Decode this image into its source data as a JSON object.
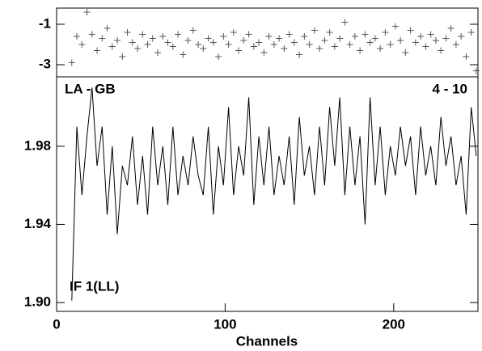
{
  "chart_data": [
    {
      "type": "scatter",
      "color": "#555555",
      "x": [
        9,
        12,
        15,
        18,
        21,
        24,
        27,
        30,
        33,
        36,
        39,
        42,
        45,
        48,
        51,
        54,
        57,
        60,
        63,
        66,
        69,
        72,
        75,
        78,
        81,
        84,
        87,
        90,
        93,
        96,
        99,
        102,
        105,
        108,
        111,
        114,
        117,
        120,
        123,
        126,
        129,
        132,
        135,
        138,
        141,
        144,
        147,
        150,
        153,
        156,
        159,
        162,
        165,
        168,
        171,
        174,
        177,
        180,
        183,
        186,
        189,
        192,
        195,
        198,
        201,
        204,
        207,
        210,
        213,
        216,
        219,
        222,
        225,
        228,
        231,
        234,
        237,
        240,
        243,
        246,
        249
      ],
      "y": [
        -2.9,
        -1.6,
        -2.0,
        -0.4,
        -1.5,
        -2.3,
        -1.7,
        -1.2,
        -2.1,
        -1.8,
        -2.6,
        -1.4,
        -1.9,
        -2.2,
        -1.5,
        -2.0,
        -1.7,
        -2.4,
        -1.6,
        -1.9,
        -2.1,
        -1.5,
        -2.5,
        -1.8,
        -1.3,
        -2.0,
        -2.2,
        -1.7,
        -1.9,
        -2.6,
        -1.6,
        -2.0,
        -1.4,
        -2.3,
        -1.8,
        -1.5,
        -2.1,
        -1.9,
        -2.4,
        -1.6,
        -2.0,
        -1.7,
        -2.2,
        -1.5,
        -1.9,
        -2.5,
        -1.6,
        -2.0,
        -1.3,
        -2.2,
        -1.8,
        -1.4,
        -2.1,
        -1.7,
        -0.9,
        -2.0,
        -1.6,
        -2.3,
        -1.5,
        -1.9,
        -1.7,
        -2.2,
        -1.4,
        -2.0,
        -1.1,
        -1.8,
        -2.4,
        -1.3,
        -1.9,
        -1.6,
        -2.1,
        -1.5,
        -1.8,
        -2.3,
        -1.7,
        -1.2,
        -2.0,
        -1.6,
        -2.6,
        -1.4,
        -3.3
      ],
      "xlim": [
        0,
        250
      ],
      "ylim": [
        -3.6,
        -0.2
      ],
      "yticks": [
        -1,
        -3
      ]
    },
    {
      "type": "line",
      "color": "#000000",
      "annotations": [
        "LA - GB",
        "4 - 10",
        "IF 1(LL)"
      ],
      "xlabel": "Channels",
      "x": [
        9,
        12,
        15,
        18,
        21,
        24,
        27,
        30,
        33,
        36,
        39,
        42,
        45,
        48,
        51,
        54,
        57,
        60,
        63,
        66,
        69,
        72,
        75,
        78,
        81,
        84,
        87,
        90,
        93,
        96,
        99,
        102,
        105,
        108,
        111,
        114,
        117,
        120,
        123,
        126,
        129,
        132,
        135,
        138,
        141,
        144,
        147,
        150,
        153,
        156,
        159,
        162,
        165,
        168,
        171,
        174,
        177,
        180,
        183,
        186,
        189,
        192,
        195,
        198,
        201,
        204,
        207,
        210,
        213,
        216,
        219,
        222,
        225,
        228,
        231,
        234,
        237,
        240,
        243,
        246,
        249
      ],
      "y": [
        1.901,
        1.99,
        1.955,
        1.985,
        2.01,
        1.97,
        1.99,
        1.945,
        1.98,
        1.935,
        1.97,
        1.96,
        1.985,
        1.95,
        1.975,
        1.945,
        1.99,
        1.96,
        1.98,
        1.95,
        1.99,
        1.955,
        1.975,
        1.96,
        1.985,
        1.965,
        1.955,
        1.99,
        1.945,
        1.98,
        1.96,
        2.0,
        1.955,
        1.98,
        1.965,
        2.005,
        1.95,
        1.985,
        1.96,
        1.99,
        1.955,
        1.975,
        1.96,
        1.985,
        1.95,
        1.995,
        1.965,
        1.98,
        1.955,
        1.99,
        1.96,
        2.0,
        1.97,
        2.005,
        1.955,
        1.99,
        1.96,
        1.985,
        1.94,
        2.005,
        1.96,
        1.99,
        1.955,
        1.98,
        1.965,
        1.99,
        1.97,
        1.985,
        1.955,
        1.99,
        1.965,
        1.98,
        1.96,
        1.995,
        1.97,
        1.985,
        1.96,
        1.975,
        1.945,
        2.0,
        1.975
      ],
      "xlim": [
        0,
        250
      ],
      "xticks": [
        0,
        100,
        200
      ],
      "ylim": [
        1.8955,
        2.0155
      ],
      "yticks": [
        {
          "value": 1.9,
          "label": "1.90"
        },
        1.94,
        1.98
      ]
    }
  ]
}
